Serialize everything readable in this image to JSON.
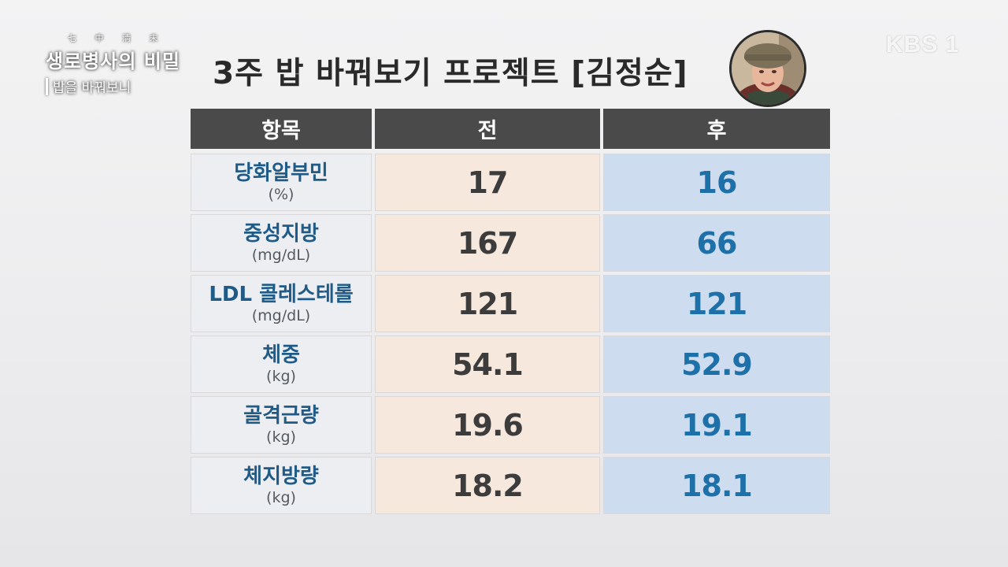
{
  "logo": {
    "top_text": "七 中 淸 末",
    "main_text": "생로병사의 비밀",
    "sub_text": "밥을 바꿔보니"
  },
  "broadcaster": "KBS 1",
  "title": "3주 밥 바꿔보기 프로젝트 [김정순]",
  "table": {
    "headers": [
      "항목",
      "전",
      "후"
    ],
    "rows": [
      {
        "name": "당화알부민",
        "unit": "(%)",
        "before": "17",
        "after": "16"
      },
      {
        "name": "중성지방",
        "unit": "(mg/dL)",
        "before": "167",
        "after": "66"
      },
      {
        "name": "LDL 콜레스테롤",
        "unit": "(mg/dL)",
        "before": "121",
        "after": "121"
      },
      {
        "name": "체중",
        "unit": "(kg)",
        "before": "54.1",
        "after": "52.9"
      },
      {
        "name": "골격근량",
        "unit": "(kg)",
        "before": "19.6",
        "after": "19.1"
      },
      {
        "name": "체지방량",
        "unit": "(kg)",
        "before": "18.2",
        "after": "18.1"
      }
    ]
  },
  "colors": {
    "header_bg": "#4a4a4a",
    "before_bg": "#f7e8de",
    "after_bg": "#cddcee",
    "item_text": "#1f5b86",
    "after_text": "#1e71a8"
  }
}
